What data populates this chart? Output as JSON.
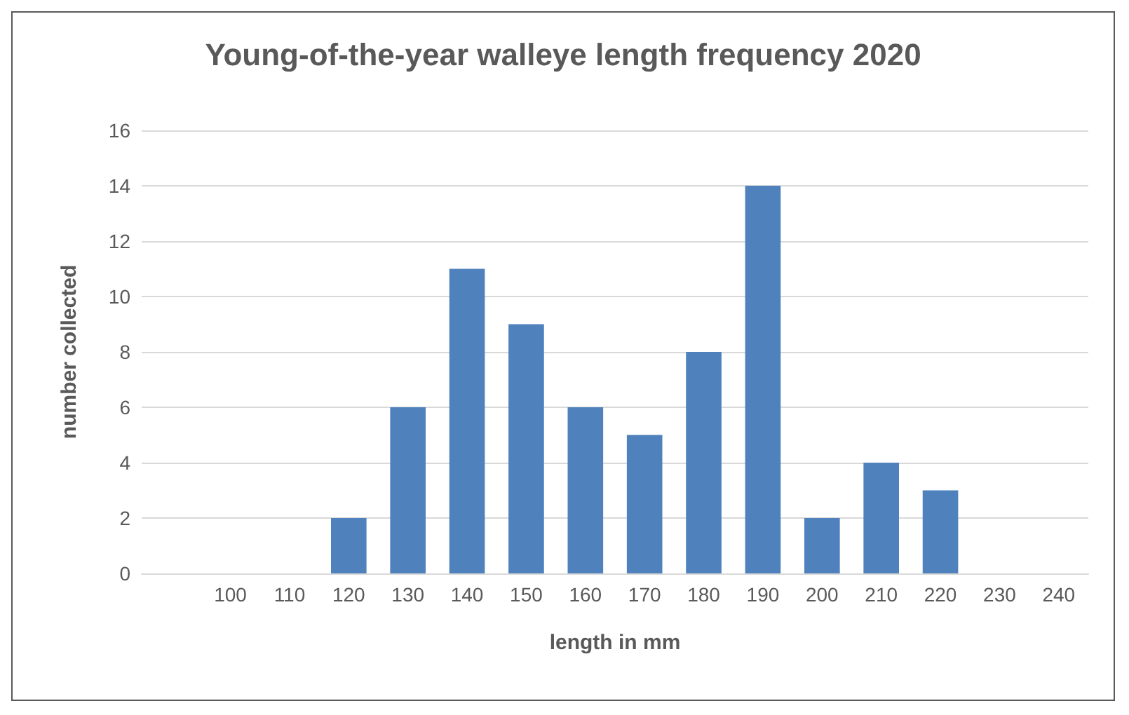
{
  "chart_data": {
    "type": "bar",
    "title": "Young-of-the-year walleye length frequency 2020",
    "xlabel": "length in mm",
    "ylabel": "number collected",
    "categories": [
      null,
      "100",
      "110",
      "120",
      "130",
      "140",
      "150",
      "160",
      "170",
      "180",
      "190",
      "200",
      "210",
      "220",
      "230",
      "240"
    ],
    "values": [
      0,
      0,
      0,
      2,
      6,
      11,
      9,
      6,
      5,
      8,
      14,
      2,
      4,
      3,
      0,
      0
    ],
    "color": "#4f81bd",
    "ylim": [
      0,
      16
    ],
    "yticks": [
      0,
      2,
      4,
      6,
      8,
      10,
      12,
      14,
      16
    ],
    "grid": "y"
  }
}
